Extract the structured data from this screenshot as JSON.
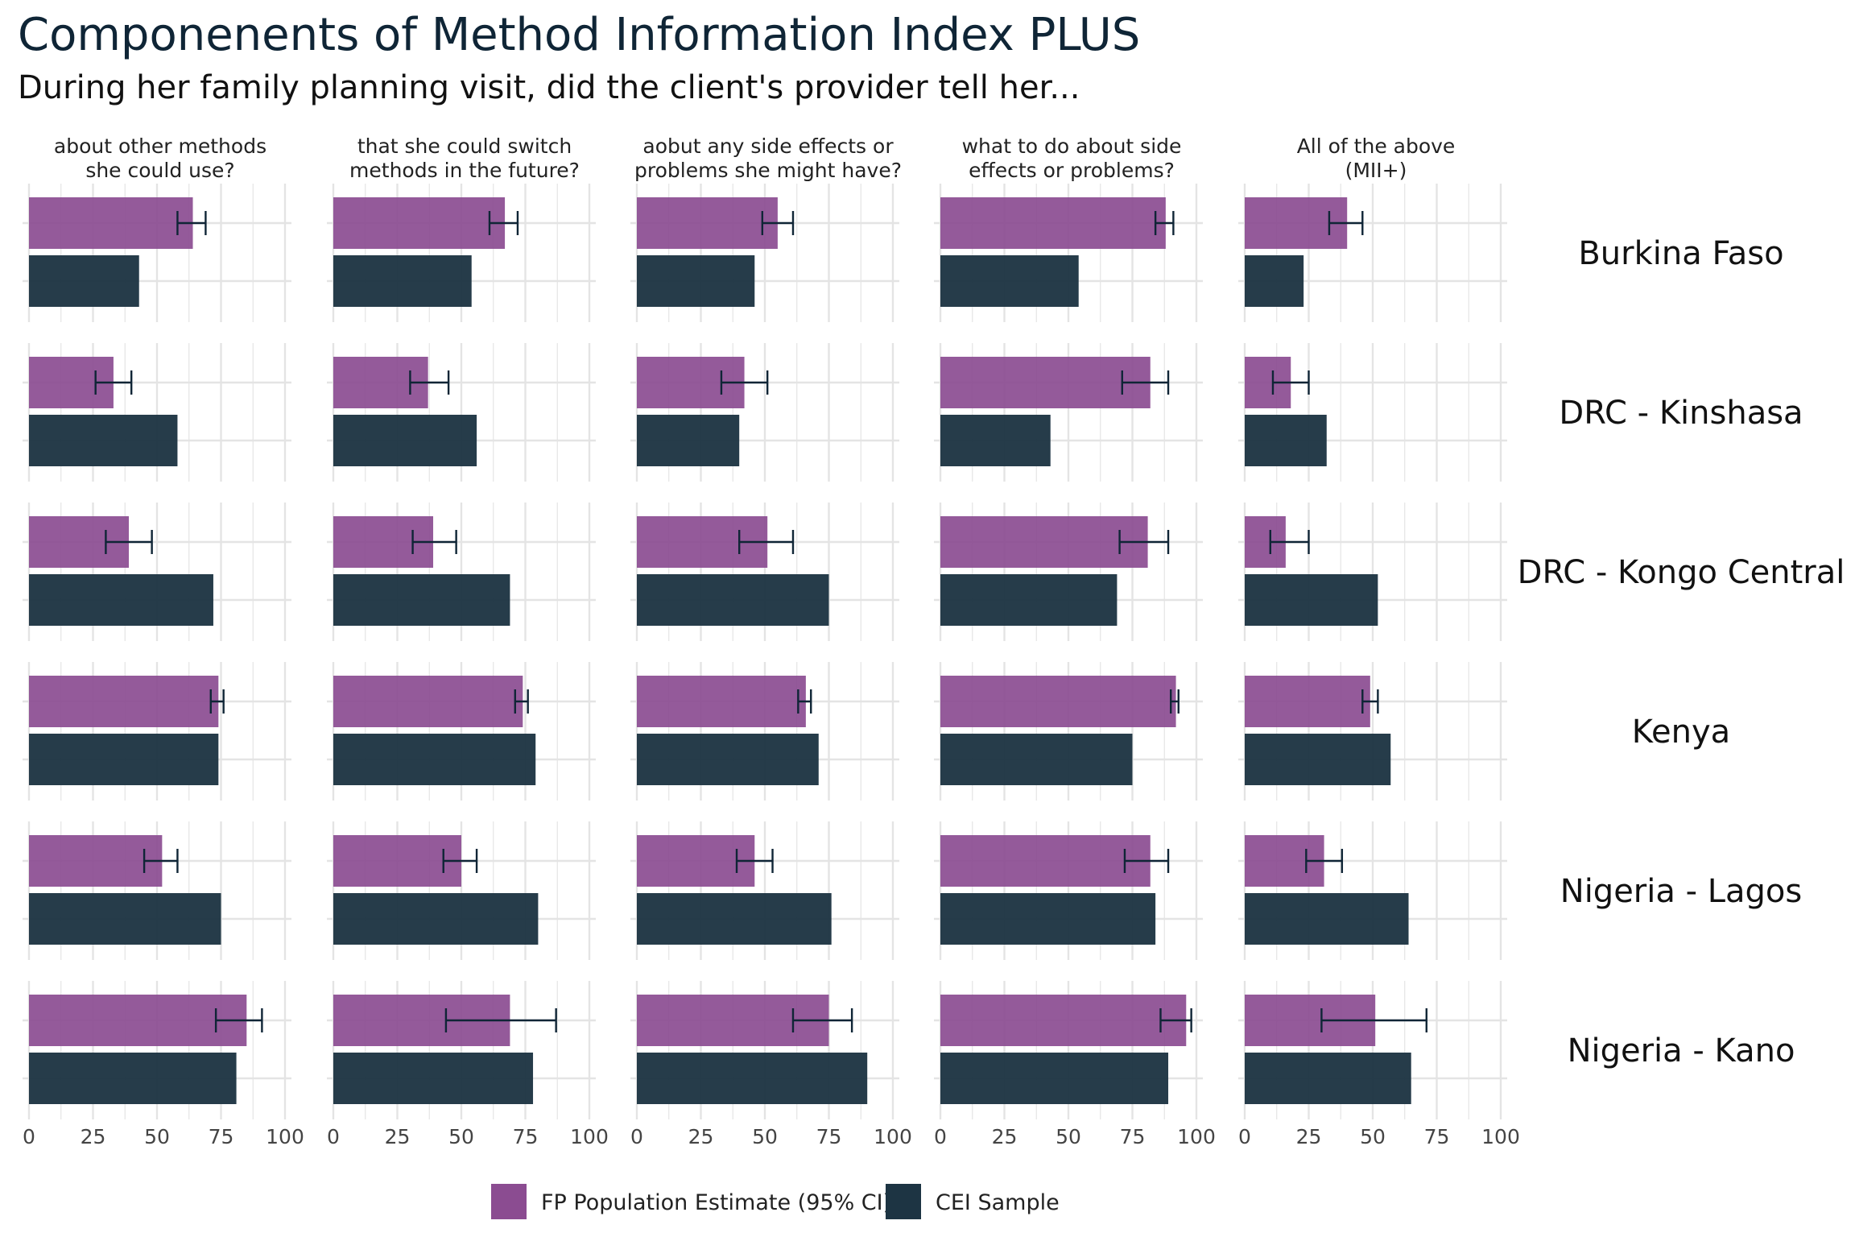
{
  "title": "Componenents of Method Information Index PLUS",
  "subtitle": "During her family planning visit, did the client's provider tell her...",
  "colors": {
    "fp": "#8b4c91",
    "cei": "#1d3443",
    "errorbar": "#0f2536",
    "grid": "#e4e4e4"
  },
  "legend": {
    "placement": "bottom",
    "items": [
      {
        "label": "FP Population Estimate (95% CI)",
        "color": "#8b4c91"
      },
      {
        "label": "CEI Sample",
        "color": "#1d3443"
      }
    ]
  },
  "chart_data": {
    "type": "bar",
    "orientation": "horizontal",
    "xlim": [
      0,
      100
    ],
    "x_ticks": [
      "0",
      "25",
      "50",
      "75",
      "100"
    ],
    "grid": true,
    "columns": [
      "about other methods\nshe could use?",
      "that she could switch\nmethods in the future?",
      "aobut any side effects or\nproblems she might have?",
      "what to do about side\neffects or problems?",
      "All of the above\n(MII+)"
    ],
    "rows": [
      "Burkina Faso",
      "DRC - Kinshasa",
      "DRC - Kongo Central",
      "Kenya",
      "Nigeria - Lagos",
      "Nigeria - Kano"
    ],
    "series": [
      {
        "name": "FP Population Estimate (95% CI)",
        "values": [
          [
            64,
            67,
            55,
            88,
            40
          ],
          [
            33,
            37,
            42,
            82,
            18
          ],
          [
            39,
            39,
            51,
            81,
            16
          ],
          [
            74,
            74,
            66,
            92,
            49
          ],
          [
            52,
            50,
            46,
            82,
            31
          ],
          [
            85,
            69,
            75,
            96,
            51
          ]
        ],
        "ci_low": [
          [
            58,
            61,
            49,
            84,
            33
          ],
          [
            26,
            30,
            33,
            71,
            11
          ],
          [
            30,
            31,
            40,
            70,
            10
          ],
          [
            71,
            71,
            63,
            90,
            46
          ],
          [
            45,
            43,
            39,
            72,
            24
          ],
          [
            73,
            44,
            61,
            86,
            30
          ]
        ],
        "ci_high": [
          [
            69,
            72,
            61,
            91,
            46
          ],
          [
            40,
            45,
            51,
            89,
            25
          ],
          [
            48,
            48,
            61,
            89,
            25
          ],
          [
            76,
            76,
            68,
            93,
            52
          ],
          [
            58,
            56,
            53,
            89,
            38
          ],
          [
            91,
            87,
            84,
            98,
            71
          ]
        ]
      },
      {
        "name": "CEI Sample",
        "values": [
          [
            43,
            54,
            46,
            54,
            23
          ],
          [
            58,
            56,
            40,
            43,
            32
          ],
          [
            72,
            69,
            75,
            69,
            52
          ],
          [
            74,
            79,
            71,
            75,
            57
          ],
          [
            75,
            80,
            76,
            84,
            64
          ],
          [
            81,
            78,
            90,
            89,
            65
          ]
        ]
      }
    ]
  }
}
